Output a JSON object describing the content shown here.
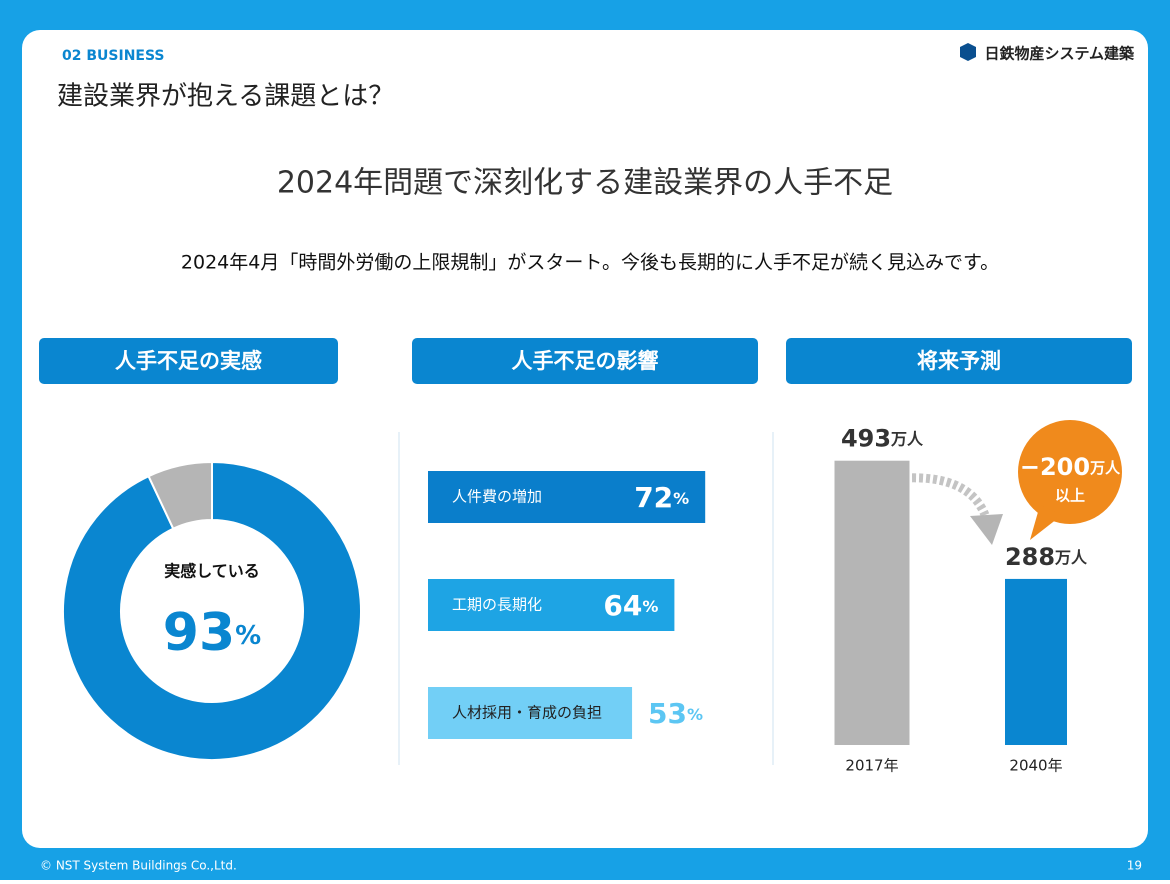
{
  "header": {
    "section": "02  BUSINESS",
    "title": "建設業界が抱える課題とは？",
    "logo": "日鉄物産システム建築"
  },
  "headline": "2024年問題で深刻化する建設業界の人手不足",
  "lead": "2024年4月「時間外労働の上限規制」がスタート。今後も長期的に人手不足が続く見込みです。",
  "chart_data": [
    {
      "type": "donut",
      "title": "人手不足の実感",
      "categories": [
        "実感している",
        null
      ],
      "values": [
        93,
        7
      ],
      "value_labels": [
        "93%",
        null
      ],
      "colors": [
        "#0a86d0",
        "#b5b5b5"
      ]
    },
    {
      "type": "hbar",
      "title": "人手不足の影響",
      "categories": [
        "人件費の増加",
        "工期の長期化",
        "人材採用・育成の負担"
      ],
      "values": [
        72,
        64,
        53
      ],
      "value_labels": [
        "72%",
        "64%",
        "53%"
      ],
      "colors": [
        "#0a7ecb",
        "#1ea4e4",
        "#72cff6"
      ],
      "label_colors": [
        "#0a7ecb",
        "#1ea4e4",
        "#5cc6f3"
      ],
      "xlim": [
        0,
        100
      ]
    },
    {
      "type": "vbar",
      "title": "将来予測",
      "categories": [
        "2017年",
        "2040年"
      ],
      "values": [
        493,
        288
      ],
      "value_labels": [
        "493万人",
        "288万人"
      ],
      "colors": [
        "#b5b5b5",
        "#0a86d0"
      ],
      "ylim": [
        0,
        600
      ],
      "annotation": [
        "−200万人",
        "以上"
      ]
    }
  ],
  "footer": {
    "copyright": "© NST System Buildings Co.,Ltd.",
    "page": "19"
  }
}
